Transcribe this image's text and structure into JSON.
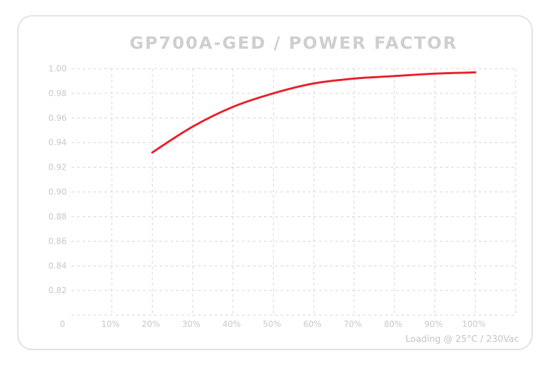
{
  "chart_data": {
    "type": "line",
    "title": "GP700A-GED / POWER FACTOR",
    "xlabel": "Loading @ 25°C / 230Vac",
    "ylabel": "",
    "x_ticks": [
      "0",
      "10%",
      "20%",
      "30%",
      "40%",
      "50%",
      "60%",
      "70%",
      "80%",
      "90%",
      "100%"
    ],
    "y_ticks": [
      "0.82",
      "0.84",
      "0.86",
      "0.88",
      "0.90",
      "0.92",
      "0.94",
      "0.96",
      "0.98",
      "1.00"
    ],
    "xlim": [
      0,
      110
    ],
    "ylim": [
      0.8,
      1.0
    ],
    "grid": true,
    "series": [
      {
        "color": "#e8202a",
        "x": [
          20,
          30,
          40,
          50,
          60,
          70,
          80,
          90,
          100
        ],
        "y": [
          0.932,
          0.953,
          0.969,
          0.98,
          0.988,
          0.992,
          0.994,
          0.996,
          0.997
        ]
      }
    ],
    "colors": {
      "title": "#cfcfcf",
      "ticks": "#c8c8c8",
      "grid": "#d6d6d6",
      "xlabel": "#c4c4c4"
    }
  }
}
